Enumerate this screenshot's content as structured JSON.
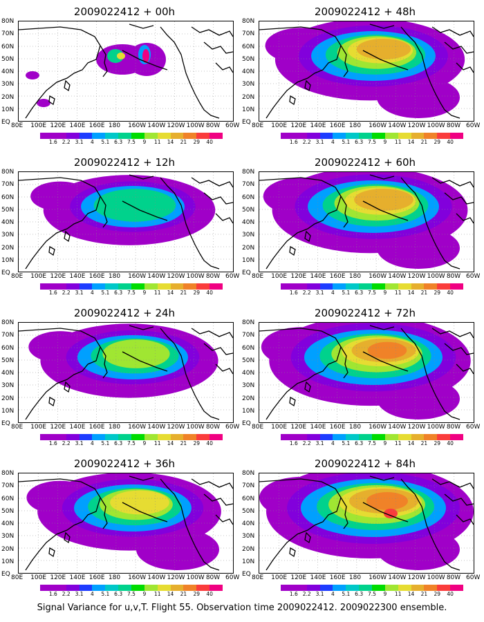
{
  "colorbar": {
    "labels": [
      "1.6",
      "2.2",
      "3.1",
      "4",
      "5.1",
      "6.3",
      "7.5",
      "9",
      "11",
      "14",
      "21",
      "29",
      "40"
    ],
    "colors": [
      "#a000c8",
      "#8200dc",
      "#1e3cff",
      "#00a0ff",
      "#00c8c8",
      "#00d28c",
      "#00dc00",
      "#a0e632",
      "#e6dc32",
      "#e6af2d",
      "#f08228",
      "#fa3c3c",
      "#f00082"
    ]
  },
  "lat_labels": [
    "80N",
    "70N",
    "60N",
    "50N",
    "40N",
    "30N",
    "20N",
    "10N",
    "EQ"
  ],
  "lon_labels": [
    "80E",
    "100E",
    "120E",
    "140E",
    "160E",
    "180",
    "160W",
    "140W",
    "120W",
    "100W",
    "80W",
    "60W"
  ],
  "panels": [
    {
      "title": "2009022412 + 00h",
      "level": 0
    },
    {
      "title": "2009022412 + 48h",
      "level": 4
    },
    {
      "title": "2009022412 + 12h",
      "level": 1
    },
    {
      "title": "2009022412 + 60h",
      "level": 5
    },
    {
      "title": "2009022412 + 24h",
      "level": 2
    },
    {
      "title": "2009022412 + 72h",
      "level": 6
    },
    {
      "title": "2009022412 + 36h",
      "level": 3
    },
    {
      "title": "2009022412 + 84h",
      "level": 7
    }
  ],
  "caption": "Signal Variance for u,v,T. Flight 55. Observation time 2009022412. 2009022300 ensemble."
}
